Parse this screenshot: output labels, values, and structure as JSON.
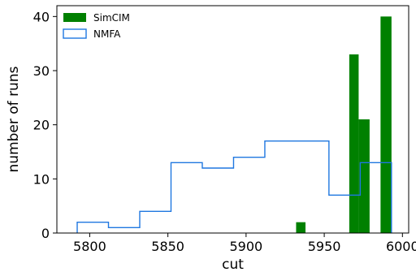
{
  "chart_data": {
    "type": "histogram",
    "title": "",
    "xlabel": "cut",
    "ylabel": "number of runs",
    "xlim": [
      5779,
      6004
    ],
    "ylim": [
      0,
      42
    ],
    "xticks": [
      5800,
      5850,
      5900,
      5950,
      6000
    ],
    "yticks": [
      0,
      10,
      20,
      30,
      40
    ],
    "grid": false,
    "legend_position": "top-left",
    "series": [
      {
        "name": "SimCIM",
        "style": "filled bars",
        "color": "#008000",
        "bins": [
          {
            "x0": 5932,
            "x1": 5938,
            "count": 2
          },
          {
            "x0": 5966,
            "x1": 5972,
            "count": 33
          },
          {
            "x0": 5972,
            "x1": 5979,
            "count": 21
          },
          {
            "x0": 5986,
            "x1": 5993,
            "count": 40
          }
        ]
      },
      {
        "name": "NMFA",
        "style": "step outline",
        "color": "#1f77e0",
        "bins": [
          {
            "x0": 5792,
            "x1": 5812,
            "count": 2
          },
          {
            "x0": 5812,
            "x1": 5832,
            "count": 1
          },
          {
            "x0": 5832,
            "x1": 5852,
            "count": 4
          },
          {
            "x0": 5852,
            "x1": 5872,
            "count": 13
          },
          {
            "x0": 5872,
            "x1": 5892,
            "count": 12
          },
          {
            "x0": 5892,
            "x1": 5912,
            "count": 14
          },
          {
            "x0": 5912,
            "x1": 5932,
            "count": 17
          },
          {
            "x0": 5932,
            "x1": 5953,
            "count": 17
          },
          {
            "x0": 5953,
            "x1": 5973,
            "count": 7
          },
          {
            "x0": 5973,
            "x1": 5993,
            "count": 13
          }
        ]
      }
    ]
  }
}
